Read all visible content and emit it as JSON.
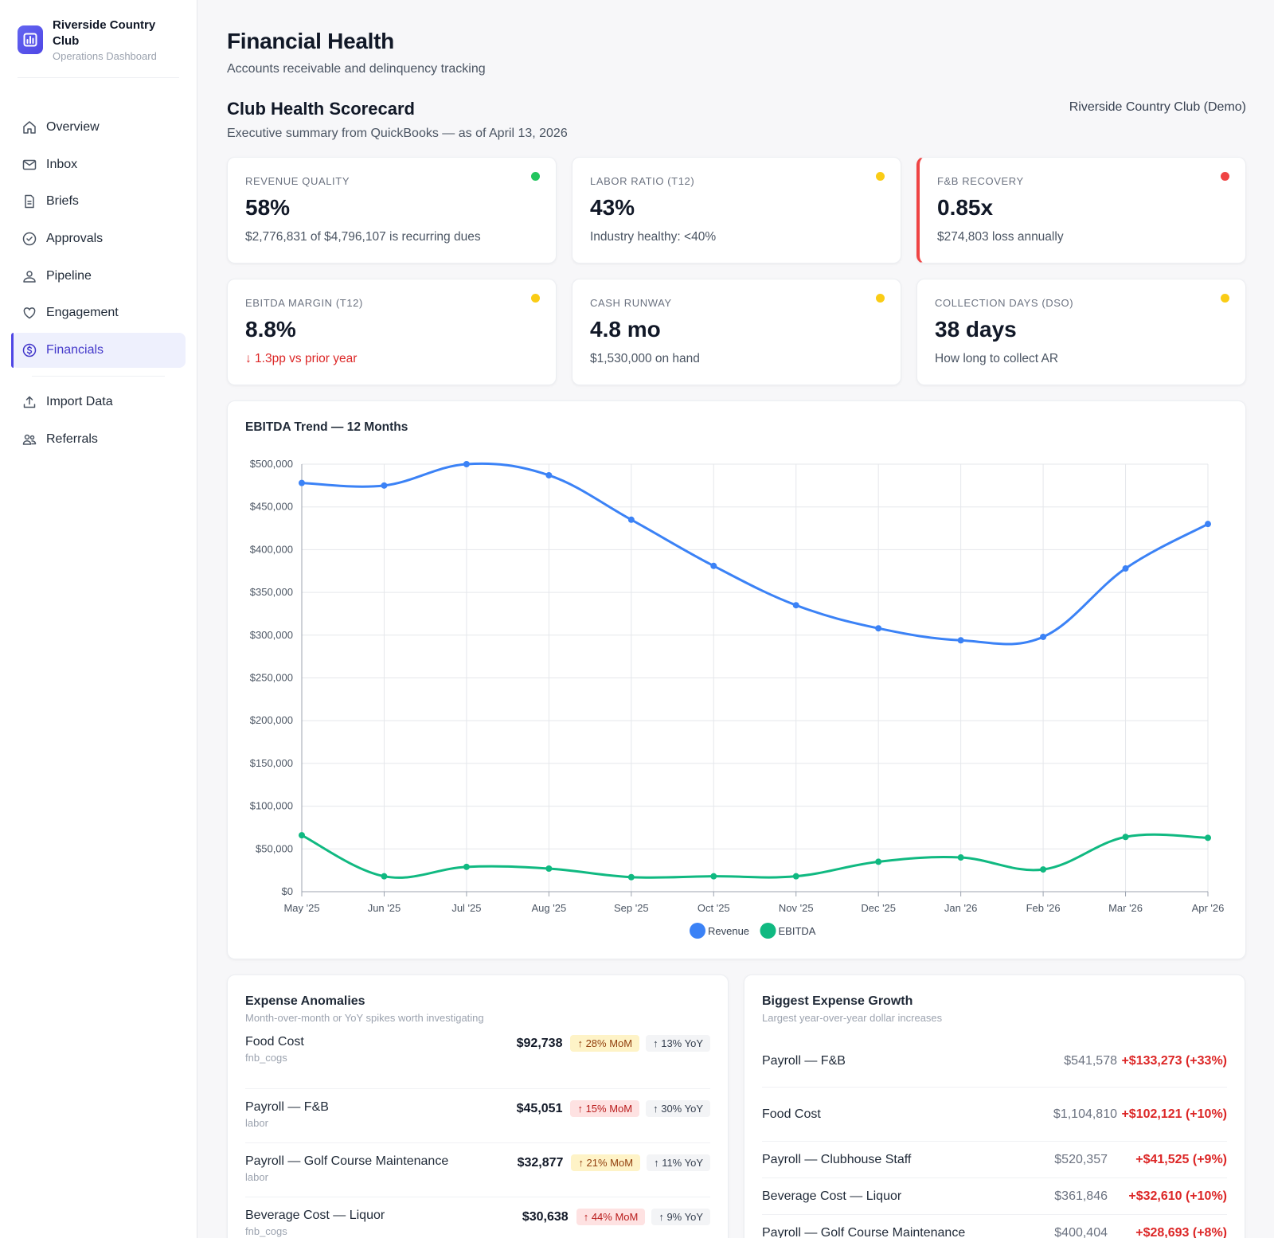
{
  "brand": {
    "name": "Riverside Country Club",
    "subtitle": "Operations Dashboard"
  },
  "nav": {
    "items": [
      {
        "label": "Overview",
        "icon": "home-icon"
      },
      {
        "label": "Inbox",
        "icon": "mail-icon"
      },
      {
        "label": "Briefs",
        "icon": "document-icon"
      },
      {
        "label": "Approvals",
        "icon": "check-circle-icon"
      },
      {
        "label": "Pipeline",
        "icon": "user-icon"
      },
      {
        "label": "Engagement",
        "icon": "heart-icon"
      },
      {
        "label": "Financials",
        "icon": "dollar-circle-icon",
        "active": true
      }
    ],
    "secondary": [
      {
        "label": "Import Data",
        "icon": "upload-icon"
      },
      {
        "label": "Referrals",
        "icon": "users-icon"
      }
    ]
  },
  "page": {
    "title": "Financial Health",
    "subtitle": "Accounts receivable and delinquency tracking"
  },
  "scorecard": {
    "title": "Club Health Scorecard",
    "subtitle": "Executive summary from QuickBooks — as of April 13, 2026",
    "club": "Riverside Country Club (Demo)",
    "cards": [
      {
        "label": "Revenue Quality",
        "value": "58%",
        "note": "$2,776,831 of $4,796,107 is recurring dues",
        "status_color": "#22c55e"
      },
      {
        "label": "Labor Ratio (T12)",
        "value": "43%",
        "note": "Industry healthy: <40%",
        "status_color": "#facc15"
      },
      {
        "label": "F&B Recovery",
        "value": "0.85x",
        "note": "$274,803 loss annually",
        "status_color": "#ef4444"
      },
      {
        "label": "EBITDA Margin (T12)",
        "value": "8.8%",
        "note": "↓ 1.3pp vs prior year",
        "status_color": "#facc15"
      },
      {
        "label": "Cash Runway",
        "value": "4.8 mo",
        "note": "$1,530,000 on hand",
        "status_color": "#facc15"
      },
      {
        "label": "Collection Days (DSO)",
        "value": "38 days",
        "note": "How long to collect AR",
        "status_color": "#facc15"
      }
    ]
  },
  "chart_data": {
    "type": "line",
    "title": "EBITDA Trend — 12 Months",
    "categories": [
      "May '25",
      "Jun '25",
      "Jul '25",
      "Aug '25",
      "Sep '25",
      "Oct '25",
      "Nov '25",
      "Dec '25",
      "Jan '26",
      "Feb '26",
      "Mar '26",
      "Apr '26"
    ],
    "series": [
      {
        "name": "Revenue",
        "color": "#3b82f6",
        "values": [
          478000,
          475000,
          500000,
          487000,
          435000,
          381000,
          335000,
          308000,
          294000,
          298000,
          378000,
          430000
        ]
      },
      {
        "name": "EBITDA",
        "color": "#10b981",
        "values": [
          66000,
          18000,
          29000,
          27000,
          17000,
          18000,
          18000,
          35000,
          40000,
          26000,
          64000,
          63000
        ]
      }
    ],
    "ylim": [
      0,
      500000
    ],
    "yticks": [
      "$0",
      "$50,000",
      "$100,000",
      "$150,000",
      "$200,000",
      "$250,000",
      "$300,000",
      "$350,000",
      "$400,000",
      "$450,000",
      "$500,000"
    ],
    "grid": true,
    "legend": "bottom"
  },
  "anomalies": {
    "title": "Expense Anomalies",
    "subtitle": "Month-over-month or YoY spikes worth investigating",
    "rows": [
      {
        "name": "Food Cost",
        "category": "fnb_cogs",
        "amount": "$92,738",
        "mom": "↑ 28% MoM",
        "mom_level": "yellow",
        "yoy": "↑ 13% YoY"
      },
      {
        "name": "Payroll — F&B",
        "category": "labor",
        "amount": "$45,051",
        "mom": "↑ 15% MoM",
        "mom_level": "red",
        "yoy": "↑ 30% YoY"
      },
      {
        "name": "Payroll — Golf Course Maintenance",
        "category": "labor",
        "amount": "$32,877",
        "mom": "↑ 21% MoM",
        "mom_level": "yellow",
        "yoy": "↑ 11% YoY"
      },
      {
        "name": "Beverage Cost — Liquor",
        "category": "fnb_cogs",
        "amount": "$30,638",
        "mom": "↑ 44% MoM",
        "mom_level": "red",
        "yoy": "↑ 9% YoY"
      }
    ]
  },
  "growth": {
    "title": "Biggest Expense Growth",
    "subtitle": "Largest year-over-year dollar increases",
    "rows": [
      {
        "name": "Payroll — F&B",
        "amount": "$541,578",
        "delta": "+$133,273 (+33%)"
      },
      {
        "name": "Food Cost",
        "amount": "$1,104,810",
        "delta": "+$102,121 (+10%)"
      },
      {
        "name": "Payroll — Clubhouse Staff",
        "amount": "$520,357",
        "delta": "+$41,525 (+9%)"
      },
      {
        "name": "Beverage Cost — Liquor",
        "amount": "$361,846",
        "delta": "+$32,610 (+10%)"
      },
      {
        "name": "Payroll — Golf Course Maintenance",
        "amount": "$400,404",
        "delta": "+$28,693 (+8%)"
      }
    ]
  }
}
